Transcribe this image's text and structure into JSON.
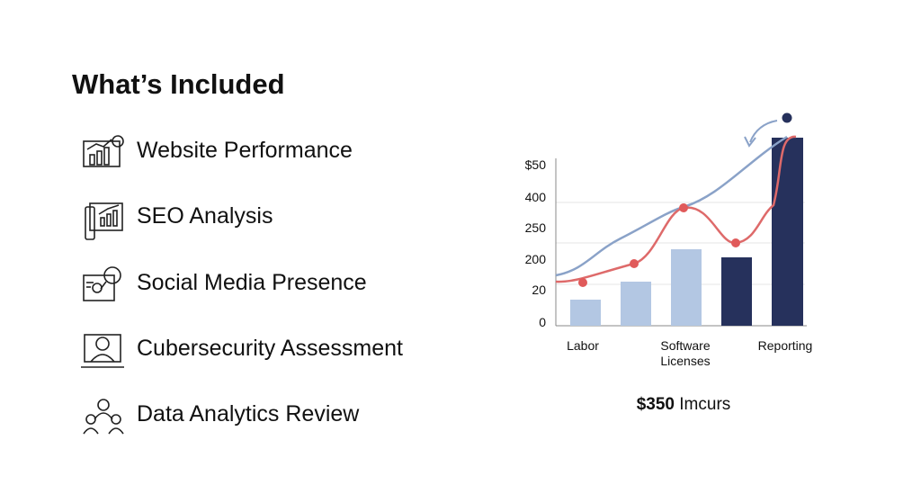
{
  "header": {
    "title": "What’s Included"
  },
  "items": [
    "Website Performance",
    "SEO Analysis",
    "Social Media Presence",
    "Cubersecurity Assessment",
    "Data Analytics Review"
  ],
  "chart": {
    "axis_labels": [
      "$50",
      "400",
      "250",
      "200",
      "20",
      "0"
    ],
    "categories": [
      "Labor",
      "Software Licenses",
      "Reporting"
    ]
  },
  "caption": {
    "amount": "$350",
    "text": "Imcurs"
  }
}
